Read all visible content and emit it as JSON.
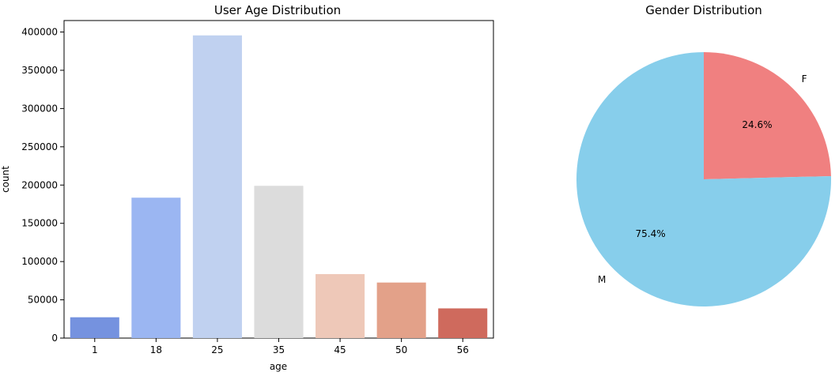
{
  "chart_data": [
    {
      "type": "bar",
      "title": "User Age Distribution",
      "xlabel": "age",
      "ylabel": "count",
      "categories": [
        "1",
        "18",
        "25",
        "35",
        "45",
        "50",
        "56"
      ],
      "values": [
        27200,
        183500,
        395600,
        199000,
        83600,
        72600,
        38800
      ],
      "ylim": [
        0,
        415000
      ],
      "yticks": [
        0,
        50000,
        100000,
        150000,
        200000,
        250000,
        300000,
        350000,
        400000
      ],
      "ytick_labels": [
        "0",
        "50000",
        "100000",
        "150000",
        "200000",
        "250000",
        "300000",
        "350000",
        "400000"
      ],
      "colors": [
        "#7592df",
        "#9bb6f2",
        "#c0d1f0",
        "#dcdcdc",
        "#eec8b8",
        "#e3a189",
        "#cf6a5d"
      ],
      "grid": false
    },
    {
      "type": "pie",
      "title": "Gender Distribution",
      "labels": [
        "F",
        "M"
      ],
      "values": [
        24.6,
        75.4
      ],
      "pct_labels": [
        "24.6%",
        "75.4%"
      ],
      "colors": [
        "#f08080",
        "#87ceeb"
      ]
    }
  ]
}
